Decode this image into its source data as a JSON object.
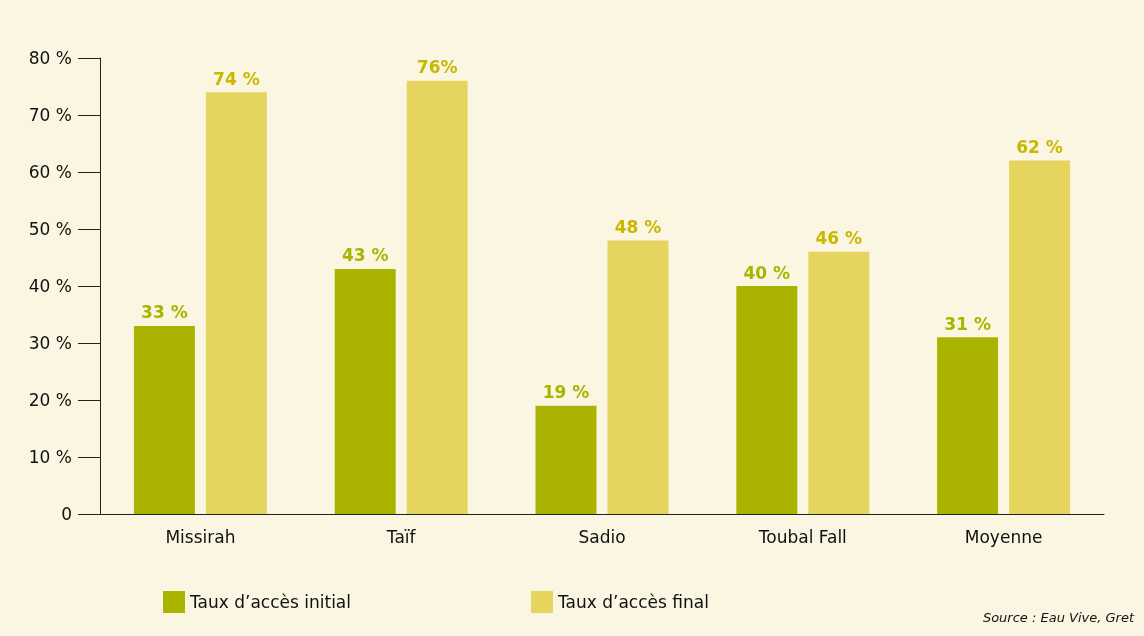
{
  "chart_data": {
    "type": "bar",
    "categories": [
      "Missirah",
      "Taïf",
      "Sadio",
      "Toubal Fall",
      "Moyenne"
    ],
    "series": [
      {
        "name": "Taux d’accès initial",
        "color": "#aab400",
        "values": [
          33,
          43,
          19,
          40,
          31
        ],
        "value_labels": [
          "33 %",
          "43 %",
          "19 %",
          "40 %",
          "31 %"
        ]
      },
      {
        "name": "Taux d’accès final",
        "color": "#e5d55f",
        "values": [
          74,
          76,
          48,
          46,
          62
        ],
        "value_labels": [
          "74 %",
          "76%",
          "48 %",
          "46 %",
          "62 %"
        ]
      }
    ],
    "ylim": [
      0,
      80
    ],
    "yticks": [
      {
        "value": 0,
        "label": "0"
      },
      {
        "value": 10,
        "label": "10 %"
      },
      {
        "value": 20,
        "label": "20 %"
      },
      {
        "value": 30,
        "label": "30 %"
      },
      {
        "value": 40,
        "label": "40 %"
      },
      {
        "value": 50,
        "label": "50 %"
      },
      {
        "value": 60,
        "label": "60 %"
      },
      {
        "value": 70,
        "label": "70 %"
      },
      {
        "value": 80,
        "label": "80 %"
      }
    ],
    "grid": false,
    "legend": "bottom left",
    "annotations": [
      "Source : Eau Vive, Gret"
    ]
  }
}
